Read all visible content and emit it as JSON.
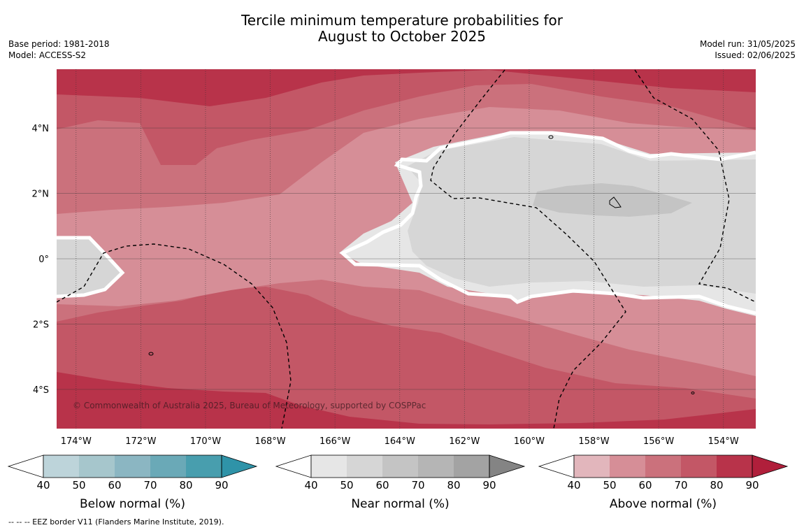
{
  "title": {
    "line1": "Tercile minimum temperature probabilities for",
    "line2": "August to October 2025"
  },
  "meta": {
    "base_period": "Base period: 1981-2018",
    "model": "Model: ACCESS-S2",
    "model_run": "Model run: 31/05/2025",
    "issued": "Issued: 02/06/2025"
  },
  "map": {
    "lon_range": [
      -174.6,
      -153.0
    ],
    "lat_range": [
      -5.2,
      5.8
    ],
    "lon_ticks": [
      -174,
      -172,
      -170,
      -168,
      -166,
      -164,
      -162,
      -160,
      -158,
      -156,
      -154
    ],
    "lon_labels": [
      "174°W",
      "172°W",
      "170°W",
      "168°W",
      "166°W",
      "164°W",
      "162°W",
      "160°W",
      "158°W",
      "156°W",
      "154°W"
    ],
    "lat_ticks": [
      4,
      2,
      0,
      -2,
      -4
    ],
    "lat_labels": [
      "4°N",
      "2°N",
      "0°",
      "2°S",
      "4°S"
    ],
    "gridlines": true,
    "copyright": "© Commonwealth of Australia 2025, Bureau of Meteorology, supported by COSPPac"
  },
  "colorbars": [
    {
      "label": "Below normal (%)",
      "ticks": [
        "40",
        "50",
        "60",
        "70",
        "80",
        "90"
      ],
      "colors": [
        "#ffffff",
        "#bdd4da",
        "#a6c6cc",
        "#8bb6c2",
        "#6aa9b7",
        "#489eae",
        "#2f93a8"
      ]
    },
    {
      "label": "Near normal (%)",
      "ticks": [
        "40",
        "50",
        "60",
        "70",
        "80",
        "90"
      ],
      "colors": [
        "#ffffff",
        "#e6e6e6",
        "#d6d6d6",
        "#c4c4c4",
        "#b5b5b5",
        "#a3a3a3",
        "#848484"
      ]
    },
    {
      "label": "Above normal (%)",
      "ticks": [
        "40",
        "50",
        "60",
        "70",
        "80",
        "90"
      ],
      "colors": [
        "#ffffff",
        "#e2b6bc",
        "#d68e97",
        "#cb717c",
        "#c35766",
        "#b8334a",
        "#b01f3b"
      ]
    }
  ],
  "legend_note": "--  --  -- EEZ border V11 (Flanders Marine Institute, 2019)."
}
